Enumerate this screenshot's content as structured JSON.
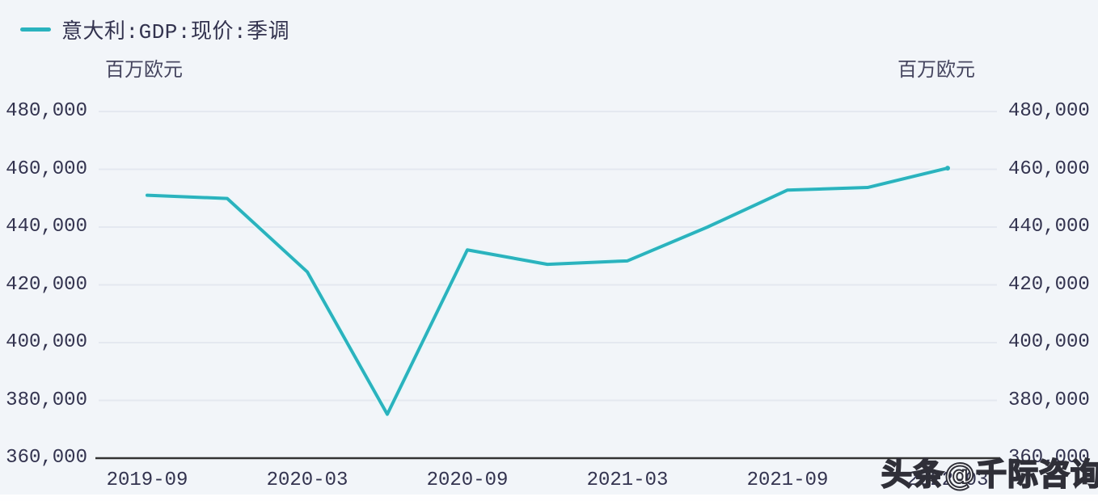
{
  "page": {
    "background": "#f2f5f9"
  },
  "legend": {
    "label": "意大利:GDP:现价:季调",
    "swatch_color": "#2ab3be"
  },
  "axes": {
    "unit_left": "百万欧元",
    "unit_right": "百万欧元",
    "y_tick_labels": [
      "480,000",
      "460,000",
      "440,000",
      "420,000",
      "400,000",
      "380,000",
      "360,000"
    ],
    "x_tick_labels": [
      "2019-09",
      "2020-03",
      "2020-09",
      "2021-03",
      "2021-09",
      "2022-03"
    ]
  },
  "watermark": {
    "text": "头条@千际咨询"
  },
  "colors": {
    "line": "#2ab3be",
    "line_halo": "#e8f7f9",
    "text": "#33334f",
    "grid": "#e4e8f0",
    "axis": "#333333",
    "background": "#f2f5f9",
    "watermark_fill": "#ffffff",
    "watermark_outline": "#2f2f38"
  },
  "chart_data": {
    "type": "line",
    "title": "意大利:GDP:现价:季调",
    "x": [
      "2019-09",
      "2019-12",
      "2020-03",
      "2020-06",
      "2020-09",
      "2020-12",
      "2021-03",
      "2021-06",
      "2021-09",
      "2021-12",
      "2022-03"
    ],
    "values": [
      451000,
      449900,
      424500,
      375200,
      432100,
      427100,
      428300,
      440000,
      452800,
      453700,
      460400
    ],
    "ylabel": "百万欧元",
    "ylim": [
      360000,
      490000
    ],
    "yticks": [
      360000,
      380000,
      400000,
      420000,
      440000,
      460000,
      480000
    ],
    "xtick_labels": [
      "2019-09",
      "2020-03",
      "2020-09",
      "2021-03",
      "2021-09",
      "2022-03"
    ],
    "grid": true,
    "legend_position": "top-left",
    "line_color": "#2ab3be"
  }
}
